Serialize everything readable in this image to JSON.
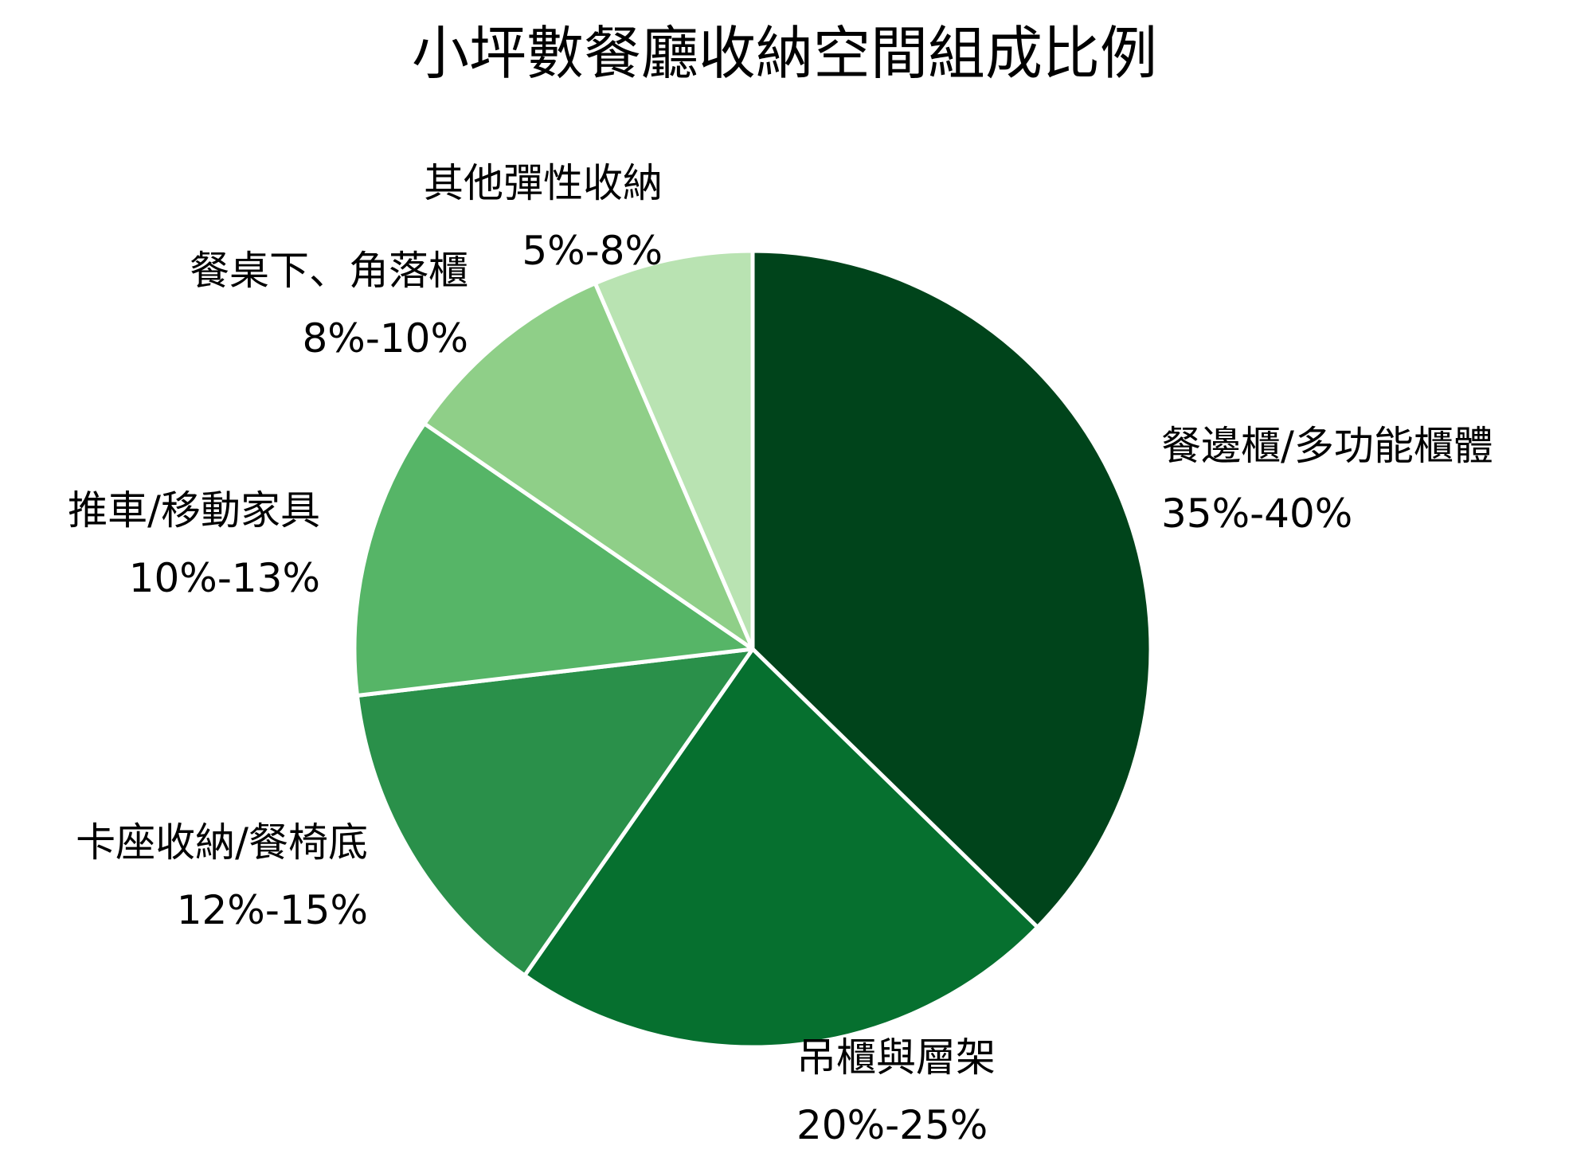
{
  "chart_data": {
    "type": "pie",
    "title": "小坪數餐廳收納空間組成比例",
    "categories": [
      "餐邊櫃/多功能櫃體",
      "吊櫃與層架",
      "卡座收納/餐椅底",
      "推車/移動家具",
      "餐桌下、角落櫃",
      "其他彈性收納"
    ],
    "values": [
      37.5,
      22.5,
      13.5,
      11.5,
      9.0,
      6.5
    ],
    "value_labels": [
      "35%-40%",
      "20%-25%",
      "12%-15%",
      "10%-13%",
      "8%-10%",
      "5%-8%"
    ],
    "colors": [
      "#00441b",
      "#06702f",
      "#2a904a",
      "#56b567",
      "#8fcf88",
      "#b9e3b2"
    ],
    "start_angle": "12 o'clock",
    "direction": "clockwise",
    "legend": "none"
  }
}
